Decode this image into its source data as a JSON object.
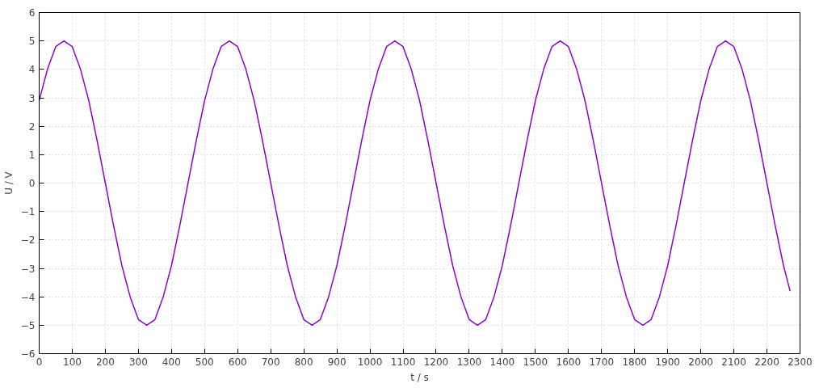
{
  "chart_data": {
    "type": "line",
    "xlabel": "t / s",
    "ylabel": "U / V",
    "x": [
      0,
      25,
      50,
      75,
      100,
      125,
      150,
      175,
      200,
      225,
      250,
      275,
      300,
      325,
      350,
      375,
      400,
      425,
      450,
      475,
      500,
      525,
      550,
      575,
      600,
      625,
      650,
      675,
      700,
      725,
      750,
      775,
      800,
      825,
      850,
      875,
      900,
      925,
      950,
      975,
      1000,
      1025,
      1050,
      1075,
      1100,
      1125,
      1150,
      1175,
      1200,
      1225,
      1250,
      1275,
      1300,
      1325,
      1350,
      1375,
      1400,
      1425,
      1450,
      1475,
      1500,
      1525,
      1550,
      1575,
      1600,
      1625,
      1650,
      1675,
      1700,
      1725,
      1750,
      1775,
      1800,
      1825,
      1850,
      1875,
      1900,
      1925,
      1950,
      1975,
      2000,
      2025,
      2050,
      2075,
      2100,
      2125,
      2150,
      2175,
      2200,
      2225,
      2250,
      2270
    ],
    "series": [
      {
        "color": "#9400d3",
        "values": [
          2.9,
          4.0,
          4.8,
          5.0,
          4.8,
          4.0,
          2.9,
          1.5,
          0,
          -1.5,
          -2.9,
          -4.0,
          -4.8,
          -5.0,
          -4.8,
          -4.0,
          -2.9,
          -1.5,
          0,
          1.5,
          2.9,
          4.0,
          4.8,
          5.0,
          4.8,
          4.0,
          2.9,
          1.5,
          0,
          -1.5,
          -2.9,
          -4.0,
          -4.8,
          -5.0,
          -4.8,
          -4.0,
          -2.9,
          -1.5,
          0,
          1.5,
          2.9,
          4.0,
          4.8,
          5.0,
          4.8,
          4.0,
          2.9,
          1.5,
          0,
          -1.5,
          -2.9,
          -4.0,
          -4.8,
          -5.0,
          -4.8,
          -4.0,
          -2.9,
          -1.5,
          0,
          1.5,
          2.9,
          4.0,
          4.8,
          5.0,
          4.8,
          4.0,
          2.9,
          1.5,
          0,
          -1.5,
          -2.9,
          -4.0,
          -4.8,
          -5.0,
          -4.8,
          -4.0,
          -2.9,
          -1.5,
          0,
          1.5,
          2.9,
          4.0,
          4.8,
          5.0,
          4.8,
          4.0,
          2.9,
          1.5,
          0,
          -1.5,
          -2.9,
          -3.8
        ]
      }
    ],
    "xlim": [
      0,
      2300
    ],
    "xticks": [
      0,
      100,
      200,
      300,
      400,
      500,
      600,
      700,
      800,
      900,
      1000,
      1100,
      1200,
      1300,
      1400,
      1500,
      1600,
      1700,
      1800,
      1900,
      2000,
      2100,
      2200,
      2300
    ],
    "ylim": [
      -6,
      6
    ],
    "yticks": [
      -6,
      -5,
      -4,
      -3,
      -2,
      -1,
      0,
      1,
      2,
      3,
      4,
      5,
      6
    ],
    "grid": true,
    "line_style": "solid"
  }
}
